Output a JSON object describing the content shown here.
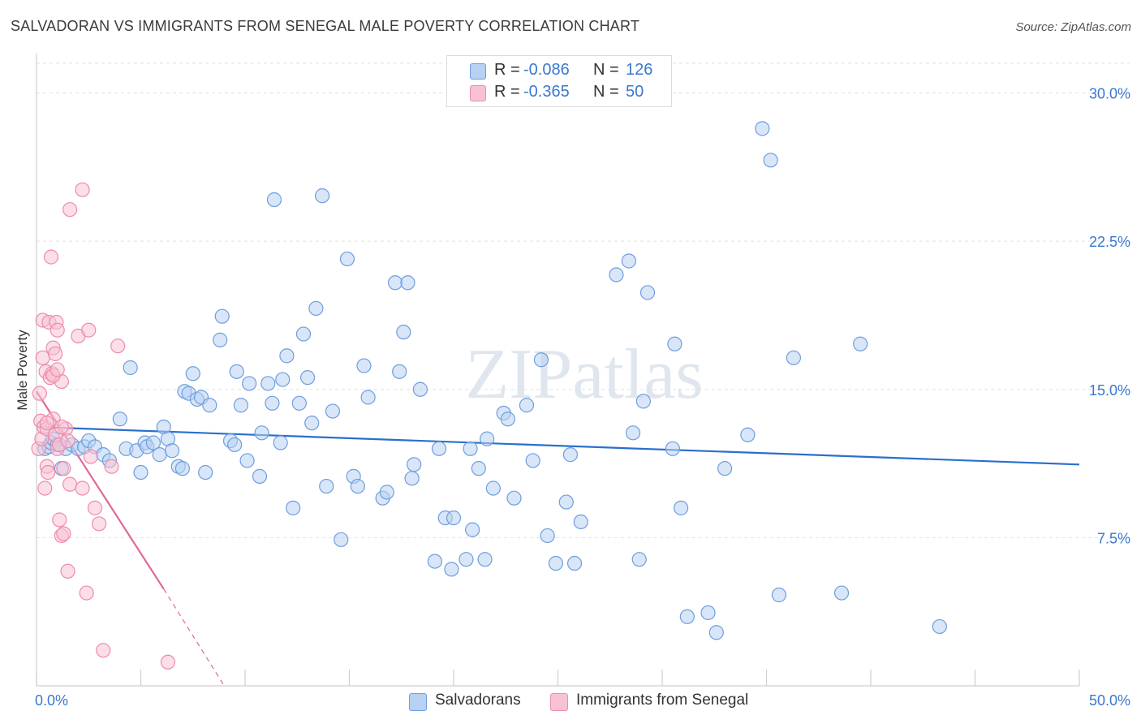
{
  "title": "SALVADORAN VS IMMIGRANTS FROM SENEGAL MALE POVERTY CORRELATION CHART",
  "source": "Source: ZipAtlas.com",
  "watermark": "ZIPatlas",
  "colors": {
    "blue_fill": "#b8d1f2",
    "blue_stroke": "#6e9ede",
    "blue_line": "#2a6fcc",
    "pink_fill": "#f7c3d3",
    "pink_stroke": "#ec8cab",
    "pink_line": "#e0679a",
    "axis_text": "#3a78cf",
    "grid": "#e2e2e2"
  },
  "legend": {
    "rows": [
      {
        "r_label": "R =",
        "r_value": "-0.086",
        "n_label": "N =",
        "n_value": "126"
      },
      {
        "r_label": "R =",
        "r_value": "-0.365",
        "n_label": "N =",
        "n_value": "50"
      }
    ]
  },
  "bottom_legend": {
    "series1": "Salvadorans",
    "series2": "Immigrants from Senegal"
  },
  "chart_data": {
    "type": "scatter",
    "title": "SALVADORAN VS IMMIGRANTS FROM SENEGAL MALE POVERTY CORRELATION CHART",
    "xlabel": "",
    "ylabel": "Male Poverty",
    "xlim": [
      0,
      50
    ],
    "ylim": [
      0,
      31.5
    ],
    "x_tick_labels": [
      "0.0%",
      "50.0%"
    ],
    "y_ticks": [
      7.5,
      15.0,
      22.5,
      30.0
    ],
    "y_tick_labels": [
      "7.5%",
      "15.0%",
      "22.5%",
      "30.0%"
    ],
    "grid": true,
    "series": [
      {
        "name": "Salvadorans",
        "r": -0.086,
        "n": 126,
        "trend": {
          "x": [
            0,
            50
          ],
          "y": [
            13.1,
            11.2
          ]
        },
        "points": [
          [
            0.4,
            12.0
          ],
          [
            0.6,
            12.1
          ],
          [
            0.7,
            12.3
          ],
          [
            0.8,
            12.5
          ],
          [
            1.0,
            12.2
          ],
          [
            1.2,
            11.0
          ],
          [
            1.4,
            12.0
          ],
          [
            1.7,
            12.2
          ],
          [
            2.0,
            12.0
          ],
          [
            2.3,
            12.1
          ],
          [
            2.5,
            12.4
          ],
          [
            2.8,
            12.1
          ],
          [
            3.2,
            11.7
          ],
          [
            3.5,
            11.4
          ],
          [
            4.0,
            13.5
          ],
          [
            4.3,
            12.0
          ],
          [
            4.5,
            16.1
          ],
          [
            4.8,
            11.9
          ],
          [
            5.0,
            10.8
          ],
          [
            5.2,
            12.3
          ],
          [
            5.3,
            12.1
          ],
          [
            5.6,
            12.3
          ],
          [
            5.9,
            11.7
          ],
          [
            6.1,
            13.1
          ],
          [
            6.3,
            12.5
          ],
          [
            6.5,
            11.9
          ],
          [
            6.8,
            11.1
          ],
          [
            7.0,
            11.0
          ],
          [
            7.1,
            14.9
          ],
          [
            7.3,
            14.8
          ],
          [
            7.5,
            15.8
          ],
          [
            7.7,
            14.5
          ],
          [
            7.9,
            14.6
          ],
          [
            8.1,
            10.8
          ],
          [
            8.3,
            14.2
          ],
          [
            8.8,
            17.5
          ],
          [
            8.9,
            18.7
          ],
          [
            9.3,
            12.4
          ],
          [
            9.5,
            12.2
          ],
          [
            9.6,
            15.9
          ],
          [
            9.8,
            14.2
          ],
          [
            10.1,
            11.4
          ],
          [
            10.2,
            15.3
          ],
          [
            10.7,
            10.6
          ],
          [
            10.8,
            12.8
          ],
          [
            11.1,
            15.3
          ],
          [
            11.3,
            14.3
          ],
          [
            11.4,
            24.6
          ],
          [
            11.7,
            12.3
          ],
          [
            11.8,
            15.5
          ],
          [
            12.0,
            16.7
          ],
          [
            12.3,
            9.0
          ],
          [
            12.6,
            14.3
          ],
          [
            12.8,
            17.8
          ],
          [
            13.0,
            15.6
          ],
          [
            13.2,
            13.3
          ],
          [
            13.4,
            19.1
          ],
          [
            13.7,
            24.8
          ],
          [
            13.9,
            10.1
          ],
          [
            14.2,
            13.9
          ],
          [
            14.6,
            7.4
          ],
          [
            14.9,
            21.6
          ],
          [
            15.2,
            10.6
          ],
          [
            15.4,
            10.1
          ],
          [
            15.7,
            16.2
          ],
          [
            15.9,
            14.6
          ],
          [
            16.6,
            9.5
          ],
          [
            16.8,
            9.8
          ],
          [
            17.2,
            20.4
          ],
          [
            17.4,
            15.9
          ],
          [
            17.6,
            17.9
          ],
          [
            17.8,
            20.4
          ],
          [
            18.0,
            10.5
          ],
          [
            18.1,
            11.2
          ],
          [
            18.4,
            15.0
          ],
          [
            19.1,
            6.3
          ],
          [
            19.3,
            12.0
          ],
          [
            19.6,
            8.5
          ],
          [
            19.9,
            5.9
          ],
          [
            20.0,
            8.5
          ],
          [
            20.6,
            6.4
          ],
          [
            20.8,
            12.0
          ],
          [
            20.9,
            7.9
          ],
          [
            21.2,
            11.0
          ],
          [
            21.5,
            6.4
          ],
          [
            21.6,
            12.5
          ],
          [
            21.9,
            10.0
          ],
          [
            22.4,
            13.8
          ],
          [
            22.6,
            13.5
          ],
          [
            22.9,
            9.5
          ],
          [
            23.5,
            14.2
          ],
          [
            23.8,
            11.4
          ],
          [
            24.2,
            16.5
          ],
          [
            24.5,
            7.6
          ],
          [
            24.9,
            6.2
          ],
          [
            25.4,
            9.3
          ],
          [
            25.6,
            11.7
          ],
          [
            25.8,
            6.2
          ],
          [
            26.1,
            8.3
          ],
          [
            27.8,
            20.8
          ],
          [
            28.4,
            21.5
          ],
          [
            28.6,
            12.8
          ],
          [
            28.9,
            6.4
          ],
          [
            29.1,
            14.4
          ],
          [
            29.3,
            19.9
          ],
          [
            30.5,
            12.0
          ],
          [
            30.6,
            17.3
          ],
          [
            30.9,
            9.0
          ],
          [
            31.2,
            3.5
          ],
          [
            32.2,
            3.7
          ],
          [
            33.0,
            11.0
          ],
          [
            34.1,
            12.7
          ],
          [
            34.8,
            28.2
          ],
          [
            35.2,
            26.6
          ],
          [
            32.6,
            2.7
          ],
          [
            35.6,
            4.6
          ],
          [
            36.3,
            16.6
          ],
          [
            38.6,
            4.7
          ],
          [
            39.5,
            17.3
          ],
          [
            43.3,
            3.0
          ]
        ]
      },
      {
        "name": "Immigrants from Senegal",
        "r": -0.365,
        "n": 50,
        "trend": {
          "x": [
            0,
            6.1
          ],
          "y": [
            14.9,
            4.9
          ]
        },
        "trend_dashed": {
          "x": [
            6.1,
            9.0
          ],
          "y": [
            4.9,
            0.0
          ]
        },
        "points": [
          [
            0.1,
            12.0
          ],
          [
            0.15,
            14.8
          ],
          [
            0.2,
            13.4
          ],
          [
            0.25,
            12.5
          ],
          [
            0.3,
            16.6
          ],
          [
            0.3,
            18.5
          ],
          [
            0.35,
            13.1
          ],
          [
            0.4,
            10.0
          ],
          [
            0.45,
            15.9
          ],
          [
            0.5,
            13.0
          ],
          [
            0.5,
            11.1
          ],
          [
            0.55,
            10.8
          ],
          [
            0.6,
            18.4
          ],
          [
            0.65,
            15.6
          ],
          [
            0.7,
            21.7
          ],
          [
            0.75,
            15.8
          ],
          [
            0.8,
            17.1
          ],
          [
            0.8,
            13.5
          ],
          [
            0.9,
            12.7
          ],
          [
            0.9,
            16.8
          ],
          [
            0.95,
            18.4
          ],
          [
            1.0,
            18.0
          ],
          [
            1.0,
            12.0
          ],
          [
            1.1,
            12.2
          ],
          [
            1.1,
            8.4
          ],
          [
            1.2,
            15.4
          ],
          [
            1.2,
            7.6
          ],
          [
            1.3,
            11.0
          ],
          [
            1.3,
            7.7
          ],
          [
            1.4,
            13.0
          ],
          [
            1.5,
            12.4
          ],
          [
            1.5,
            5.8
          ],
          [
            1.6,
            24.1
          ],
          [
            1.6,
            10.2
          ],
          [
            2.0,
            17.7
          ],
          [
            2.2,
            25.1
          ],
          [
            2.2,
            10.0
          ],
          [
            2.5,
            18.0
          ],
          [
            2.6,
            11.6
          ],
          [
            2.8,
            9.0
          ],
          [
            3.0,
            8.2
          ],
          [
            3.6,
            11.1
          ],
          [
            3.9,
            17.2
          ],
          [
            3.2,
            1.8
          ],
          [
            2.4,
            4.7
          ],
          [
            6.3,
            1.2
          ],
          [
            0.5,
            13.3
          ],
          [
            0.8,
            15.7
          ],
          [
            1.2,
            13.1
          ],
          [
            1.0,
            16.0
          ]
        ]
      }
    ]
  }
}
